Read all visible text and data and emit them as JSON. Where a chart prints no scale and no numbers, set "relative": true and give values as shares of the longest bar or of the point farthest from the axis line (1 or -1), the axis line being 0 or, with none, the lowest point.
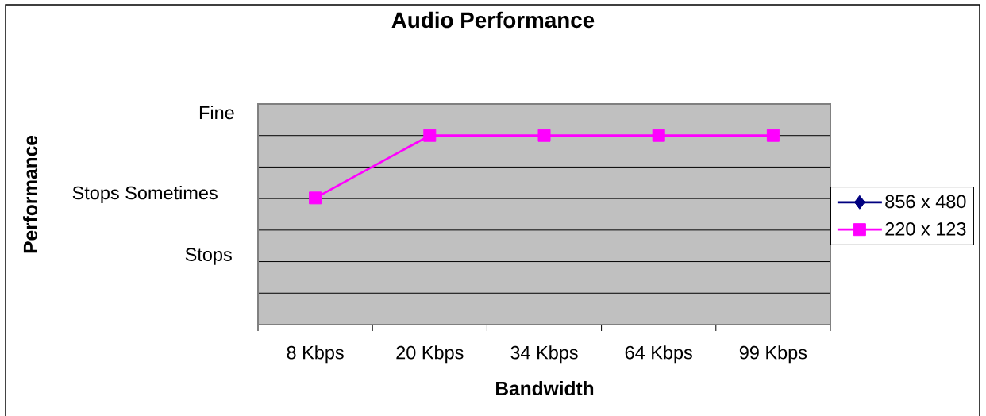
{
  "chart_data": {
    "type": "line",
    "title": "Audio Performance",
    "xlabel": "Bandwidth",
    "categories": [
      "8 Kbps",
      "20 Kbps",
      "34 Kbps",
      "64 Kbps",
      "99 Kbps"
    ],
    "series": [
      {
        "name": "856 x 480",
        "color": "#000080",
        "marker": "diamond",
        "values": [
          null,
          null,
          null,
          null,
          null
        ]
      },
      {
        "name": "220 x 123",
        "color": "#ff00ff",
        "marker": "square",
        "values": [
          0.67,
          1,
          1,
          1,
          1
        ]
      }
    ],
    "relative": true,
    "annotations": [
      "Performance",
      "Fine",
      "Stops Sometimes",
      "Stops"
    ],
    "grid": "y",
    "legend": "right",
    "line_style": "solid"
  }
}
